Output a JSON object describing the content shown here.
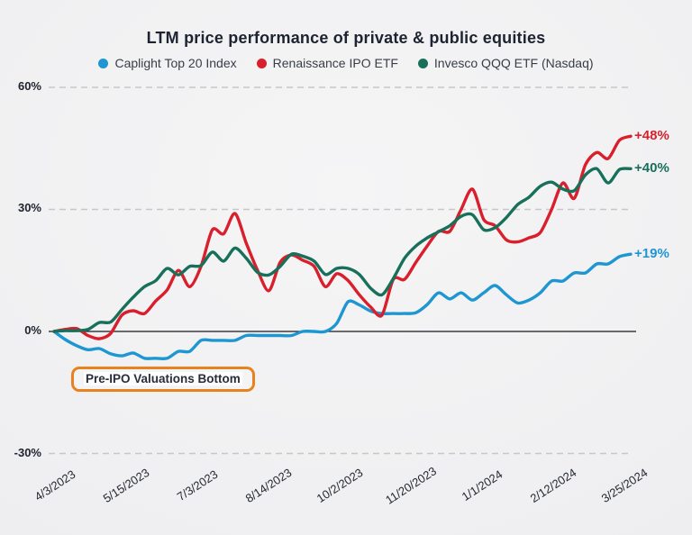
{
  "title": "LTM price performance of private & public equities",
  "legend": [
    {
      "label": "Caplight Top 20 Index",
      "color": "#1e96d2"
    },
    {
      "label": "Renaissance IPO ETF",
      "color": "#d91f2c"
    },
    {
      "label": "Invesco QQQ ETF (Nasdaq)",
      "color": "#18705a"
    }
  ],
  "annotation": {
    "label": "Pre-IPO Valuations Bottom",
    "border_color": "#e8821e"
  },
  "chart_data": {
    "type": "line",
    "title": "LTM price performance of private & public equities",
    "x_tick_labels": [
      "4/3/2023",
      "5/15/2023",
      "7/3/2023",
      "8/14/2023",
      "10/2/2023",
      "11/20/2023",
      "1/1/2024",
      "2/12/2024",
      "3/25/2024"
    ],
    "y_tick_labels": [
      "60%",
      "30%",
      "0%",
      "-30%"
    ],
    "y_ticks": [
      60,
      30,
      0,
      -30
    ],
    "ylim": [
      -33,
      63
    ],
    "x_unit": "weekly observations, 4/3/2023 to 3/25/2024",
    "grid": "horizontal dashed gridlines, solid line at 0%",
    "legend_position": "top",
    "zero_line_color": "#16181d",
    "grid_color": "#c7c7cb",
    "series": [
      {
        "id": "caplight",
        "name": "Caplight Top 20 Index",
        "color": "#1e96d2",
        "end_label": "+19%",
        "values": [
          0,
          -2,
          -3.5,
          -4.5,
          -4.2,
          -5.5,
          -6,
          -5.3,
          -6.6,
          -6.6,
          -6.6,
          -4.9,
          -4.9,
          -2.2,
          -2.2,
          -2.2,
          -2.2,
          -1,
          -1,
          -1,
          -1,
          -1,
          0,
          0,
          0,
          2,
          7.3,
          6.5,
          5,
          4.4,
          4.4,
          4.4,
          4.6,
          6.6,
          9.5,
          8,
          9.5,
          7.7,
          9.5,
          11.3,
          9,
          7,
          7.7,
          9.5,
          12.4,
          12.4,
          14.4,
          14.4,
          16.6,
          16.6,
          18.4,
          19
        ]
      },
      {
        "id": "renaissance-ipo",
        "name": "Renaissance IPO ETF",
        "color": "#d91f2c",
        "end_label": "+48%",
        "values": [
          0,
          0.5,
          0.7,
          -1,
          -1.8,
          -0.5,
          4,
          5.1,
          4.4,
          7.5,
          10.2,
          15,
          11,
          16,
          25,
          24,
          29,
          21.7,
          15,
          10,
          17,
          18.8,
          17.5,
          16,
          11,
          14.2,
          12.5,
          9,
          6,
          4,
          12.8,
          12.8,
          17,
          21,
          24.6,
          24.6,
          30,
          35,
          27.5,
          26,
          22.5,
          22,
          23,
          24.3,
          30,
          36.5,
          32.7,
          41,
          44,
          42.5,
          47,
          48
        ]
      },
      {
        "id": "invesco-qqq",
        "name": "Invesco QQQ ETF (Nasdaq)",
        "color": "#18705a",
        "end_label": "+40%",
        "values": [
          0,
          0.2,
          0.2,
          0.5,
          2.2,
          2.3,
          5.4,
          8.4,
          11,
          12.5,
          15.5,
          13.9,
          16,
          16.2,
          19.5,
          17.3,
          20.5,
          18,
          14.5,
          13.9,
          16,
          19,
          18.5,
          17.3,
          14,
          15.5,
          15.5,
          14,
          10.6,
          9,
          13,
          18,
          21,
          23,
          24.5,
          26,
          28.3,
          28.7,
          25,
          25.5,
          28,
          31.2,
          33,
          35.7,
          36.7,
          35,
          34.6,
          38.5,
          40,
          36.5,
          39.8,
          40
        ]
      }
    ]
  }
}
